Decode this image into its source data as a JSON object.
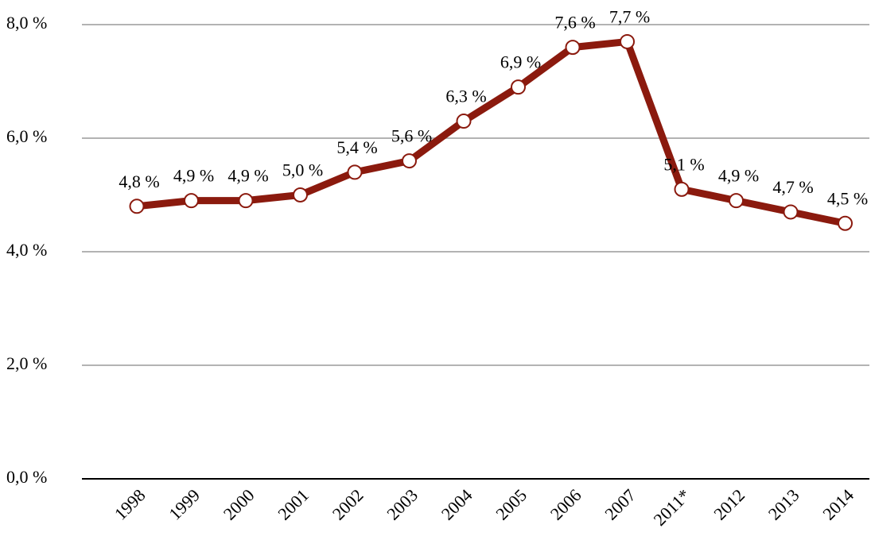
{
  "chart_data": {
    "type": "line",
    "categories": [
      "1998",
      "1999",
      "2000",
      "2001",
      "2002",
      "2003",
      "2004",
      "2005",
      "2006",
      "2007",
      "2011*",
      "2012",
      "2013",
      "2014"
    ],
    "values": [
      4.8,
      4.9,
      4.9,
      5.0,
      5.4,
      5.6,
      6.3,
      6.9,
      7.6,
      7.7,
      5.1,
      4.9,
      4.7,
      4.5
    ],
    "value_labels": [
      "4,8 %",
      "4,9 %",
      "4,9 %",
      "5,0 %",
      "5,4 %",
      "5,6 %",
      "6,3 %",
      "6,9 %",
      "7,6 %",
      "7,7 %",
      "5,1 %",
      "4,9 %",
      "4,7 %",
      "4,5 %"
    ],
    "color": "#8b1a0e",
    "ylim": [
      0,
      8
    ],
    "yticks": [
      {
        "value": 0,
        "label": "0,0 %"
      },
      {
        "value": 2,
        "label": "2,0 %"
      },
      {
        "value": 4,
        "label": "4,0 %"
      },
      {
        "value": 6,
        "label": "6,0 %"
      },
      {
        "value": 8,
        "label": "8,0 %"
      }
    ],
    "grid": true
  }
}
